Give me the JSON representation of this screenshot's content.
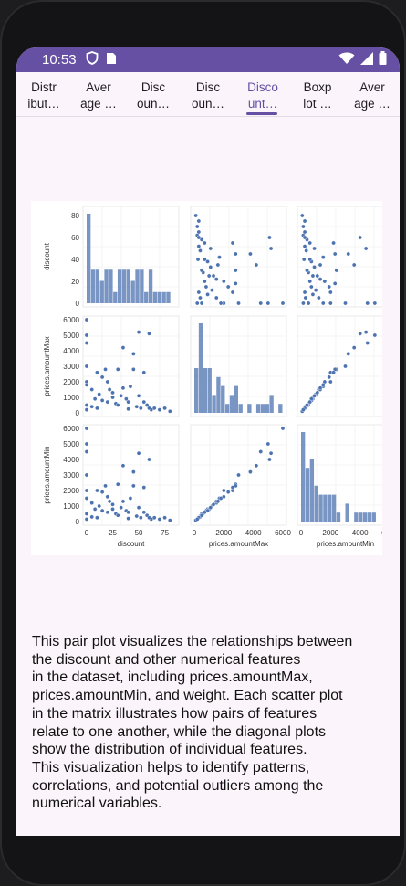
{
  "status_bar": {
    "time": "10:53"
  },
  "tabs": [
    {
      "label": "Distr\nibut…"
    },
    {
      "label": "Aver\nage …"
    },
    {
      "label": "Disc\noun…"
    },
    {
      "label": "Disc\noun…"
    },
    {
      "label": "Disco\nunt…"
    },
    {
      "label": "Boxp\nlot …"
    },
    {
      "label": "Aver\nage …"
    }
  ],
  "active_tab": 4,
  "pairplot": {
    "variables": [
      "discount",
      "prices.amountMax",
      "prices.amountMin"
    ],
    "discount_ticks": [
      "0",
      "20",
      "40",
      "60",
      "80"
    ],
    "discount_xticks": [
      "0",
      "25",
      "50",
      "75"
    ],
    "price_ticks": [
      "0",
      "1000",
      "2000",
      "3000",
      "4000",
      "5000",
      "6000"
    ],
    "price_xticks": [
      "0",
      "2000",
      "4000",
      "6000"
    ],
    "point_color": "#4c72b0"
  },
  "chart_data": {
    "type": "scatter",
    "title": "",
    "variables": [
      "discount",
      "prices.amountMax",
      "prices.amountMin"
    ],
    "ranges": {
      "discount": [
        0,
        85
      ],
      "prices.amountMax": [
        0,
        6000
      ],
      "prices.amountMin": [
        0,
        6000
      ]
    },
    "series": [
      {
        "name": "",
        "discount": [
          0,
          0,
          0,
          0,
          0,
          0,
          5,
          8,
          10,
          12,
          15,
          18,
          20,
          22,
          25,
          28,
          30,
          33,
          35,
          38,
          40,
          42,
          45,
          48,
          50,
          52,
          55,
          58,
          60,
          62,
          65,
          70,
          75,
          80,
          5,
          10,
          15,
          20,
          25,
          30,
          35,
          40,
          45,
          50,
          55,
          60,
          0,
          0
        ],
        "prices.amountMax": [
          6000,
          5000,
          4500,
          3000,
          2000,
          500,
          1500,
          900,
          2600,
          1200,
          800,
          2800,
          2000,
          1500,
          1000,
          600,
          2800,
          1100,
          4200,
          900,
          700,
          1700,
          2800,
          400,
          5200,
          300,
          2600,
          500,
          5100,
          200,
          300,
          200,
          300,
          100,
          400,
          300,
          2300,
          700,
          1300,
          500,
          1600,
          250,
          3800,
          1100,
          700,
          300,
          1800,
          200
        ],
        "prices.amountMin": [
          6000,
          5000,
          4500,
          3000,
          2000,
          500,
          1200,
          800,
          2000,
          1000,
          700,
          2300,
          1600,
          1300,
          800,
          500,
          2400,
          900,
          3600,
          700,
          600,
          1500,
          2300,
          350,
          4400,
          250,
          2200,
          400,
          4000,
          150,
          250,
          150,
          250,
          80,
          300,
          250,
          1900,
          600,
          1100,
          400,
          1300,
          200,
          3200,
          900,
          600,
          250,
          1500,
          150
        ]
      }
    ]
  },
  "description": [
    "This pair plot visualizes the relationships between",
    "the discount and other numerical features",
    "in the dataset, including prices.amountMax,",
    "prices.amountMin, and weight. Each scatter plot",
    "in the matrix illustrates how pairs of features",
    "relate to one another, while the diagonal plots",
    "show the distribution of individual features.",
    "This visualization helps to identify patterns,",
    "correlations, and potential outliers among the",
    "numerical variables."
  ]
}
